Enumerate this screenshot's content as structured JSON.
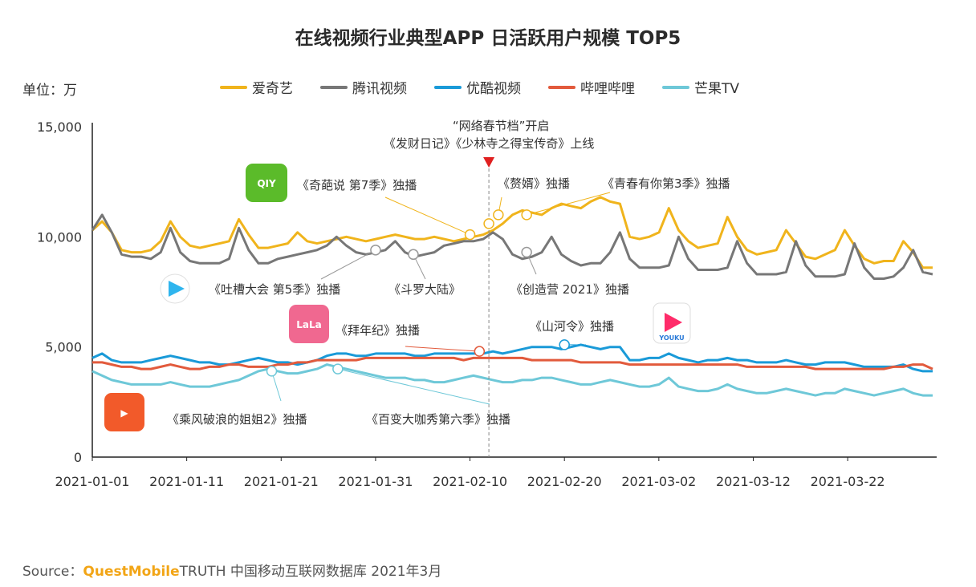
{
  "chart_data": {
    "type": "line",
    "title": "在线视频行业典型APP 日活跃用户规模 TOP5",
    "unit_label": "单位：万",
    "x_ticks": [
      "2021-01-01",
      "2021-01-11",
      "2021-01-21",
      "2021-01-31",
      "2021-02-10",
      "2021-02-20",
      "2021-03-02",
      "2021-03-12",
      "2021-03-22"
    ],
    "y_ticks": [
      "15,000",
      "10,000",
      "5,000",
      "0"
    ],
    "ylim": [
      0,
      15000
    ],
    "x_range": [
      "2021-01-01",
      "2021-03-31"
    ],
    "grid": false,
    "legend_position": "top",
    "series": [
      {
        "name": "爱奇艺",
        "color": "#f0b41c",
        "values": [
          10300,
          10700,
          10200,
          9400,
          9300,
          9300,
          9400,
          9800,
          10700,
          10000,
          9600,
          9500,
          9600,
          9700,
          9800,
          10800,
          10100,
          9500,
          9500,
          9600,
          9700,
          10200,
          9800,
          9700,
          9800,
          9900,
          10000,
          9900,
          9800,
          9900,
          10000,
          10100,
          10000,
          9900,
          9900,
          10000,
          9900,
          9800,
          9900,
          10000,
          10100,
          10300,
          10600,
          11000,
          11200,
          11100,
          11000,
          11300,
          11500,
          11400,
          11300,
          11600,
          11800,
          11600,
          11500,
          10000,
          9900,
          10000,
          10200,
          11300,
          10300,
          9800,
          9500,
          9600,
          9700,
          10900,
          10000,
          9400,
          9200,
          9300,
          9400,
          10300,
          9700,
          9100,
          9000,
          9200,
          9400,
          10300,
          9600,
          9000,
          8800,
          8900,
          8900,
          9800,
          9300,
          8600,
          8600
        ]
      },
      {
        "name": "腾讯视频",
        "color": "#777777",
        "values": [
          10300,
          11000,
          10200,
          9200,
          9100,
          9100,
          9000,
          9300,
          10400,
          9300,
          8900,
          8800,
          8800,
          8800,
          9000,
          10400,
          9400,
          8800,
          8800,
          9000,
          9100,
          9200,
          9300,
          9400,
          9600,
          10000,
          9600,
          9300,
          9200,
          9300,
          9400,
          9800,
          9300,
          9100,
          9200,
          9300,
          9600,
          9700,
          9800,
          9800,
          9900,
          10200,
          9900,
          9200,
          9000,
          9100,
          9300,
          10000,
          9200,
          8900,
          8700,
          8800,
          8800,
          9300,
          10200,
          9000,
          8600,
          8600,
          8600,
          8700,
          10000,
          9000,
          8500,
          8500,
          8500,
          8600,
          9800,
          8800,
          8300,
          8300,
          8300,
          8400,
          9800,
          8700,
          8200,
          8200,
          8200,
          8300,
          9700,
          8600,
          8100,
          8100,
          8200,
          8600,
          9400,
          8400,
          8300
        ]
      },
      {
        "name": "优酷视频",
        "color": "#1a9ad8",
        "values": [
          4500,
          4700,
          4400,
          4300,
          4300,
          4300,
          4400,
          4500,
          4600,
          4500,
          4400,
          4300,
          4300,
          4200,
          4200,
          4300,
          4400,
          4500,
          4400,
          4300,
          4300,
          4200,
          4300,
          4400,
          4600,
          4700,
          4700,
          4600,
          4600,
          4700,
          4700,
          4700,
          4700,
          4600,
          4600,
          4700,
          4700,
          4700,
          4700,
          4700,
          4700,
          4800,
          4700,
          4800,
          4900,
          5000,
          5000,
          5000,
          4900,
          5000,
          5100,
          5000,
          4900,
          5000,
          5000,
          4400,
          4400,
          4500,
          4500,
          4700,
          4500,
          4400,
          4300,
          4400,
          4400,
          4500,
          4400,
          4400,
          4300,
          4300,
          4300,
          4400,
          4300,
          4200,
          4200,
          4300,
          4300,
          4300,
          4200,
          4100,
          4100,
          4100,
          4100,
          4200,
          4000,
          3900,
          3900
        ]
      },
      {
        "name": "哔哩哔哩",
        "color": "#e25a3c",
        "values": [
          4300,
          4300,
          4200,
          4100,
          4100,
          4000,
          4000,
          4100,
          4200,
          4100,
          4000,
          4000,
          4100,
          4100,
          4200,
          4200,
          4100,
          4100,
          4100,
          4200,
          4200,
          4300,
          4300,
          4400,
          4400,
          4400,
          4400,
          4400,
          4500,
          4500,
          4500,
          4500,
          4500,
          4500,
          4500,
          4500,
          4500,
          4500,
          4400,
          4500,
          4500,
          4500,
          4500,
          4500,
          4500,
          4400,
          4400,
          4400,
          4400,
          4400,
          4300,
          4300,
          4300,
          4300,
          4300,
          4200,
          4200,
          4200,
          4200,
          4200,
          4200,
          4200,
          4200,
          4200,
          4200,
          4200,
          4200,
          4100,
          4100,
          4100,
          4100,
          4100,
          4100,
          4100,
          4000,
          4000,
          4000,
          4000,
          4000,
          4000,
          4000,
          4000,
          4100,
          4100,
          4200,
          4200,
          4000
        ]
      },
      {
        "name": "芒果TV",
        "color": "#6ec8d8",
        "values": [
          3900,
          3700,
          3500,
          3400,
          3300,
          3300,
          3300,
          3300,
          3400,
          3300,
          3200,
          3200,
          3200,
          3300,
          3400,
          3500,
          3700,
          3900,
          4000,
          3900,
          3800,
          3800,
          3900,
          4000,
          4200,
          4100,
          4000,
          3900,
          3800,
          3700,
          3600,
          3600,
          3600,
          3500,
          3500,
          3400,
          3400,
          3500,
          3600,
          3700,
          3600,
          3500,
          3400,
          3400,
          3500,
          3500,
          3600,
          3600,
          3500,
          3400,
          3300,
          3300,
          3400,
          3500,
          3400,
          3300,
          3200,
          3200,
          3300,
          3600,
          3200,
          3100,
          3000,
          3000,
          3100,
          3300,
          3100,
          3000,
          2900,
          2900,
          3000,
          3100,
          3000,
          2900,
          2800,
          2900,
          2900,
          3100,
          3000,
          2900,
          2800,
          2900,
          3000,
          3100,
          2900,
          2800,
          2800
        ]
      }
    ],
    "annotations": [
      {
        "id": "spring",
        "label": "“网络春节档”开启"
      },
      {
        "id": "facai",
        "label": "《发财日记》《少林寺之得宝传奇》上线"
      },
      {
        "id": "qipa",
        "label": "《奇葩说 第7季》独播"
      },
      {
        "id": "zhuixu",
        "label": "《赘婿》独播"
      },
      {
        "id": "qingchun",
        "label": "《青春有你第3季》独播"
      },
      {
        "id": "tucao",
        "label": "《吐槽大会 第5季》独播"
      },
      {
        "id": "douluo",
        "label": "《斗罗大陆》"
      },
      {
        "id": "chuangzao",
        "label": "《创造营 2021》独播"
      },
      {
        "id": "bainian",
        "label": "《拜年纪》独播"
      },
      {
        "id": "shanhe",
        "label": "《山河令》独播"
      },
      {
        "id": "chengfeng",
        "label": "《乘风破浪的姐姐2》独播"
      },
      {
        "id": "baibian",
        "label": "《百变大咖秀第六季》独播"
      }
    ]
  },
  "source": {
    "prefix": "Source：",
    "brand": "QuestMobile",
    "rest": "TRUTH 中国移动互联网数据库 2021年3月"
  },
  "logos": {
    "iqiyi": "QIY",
    "bilibili": "LaLa",
    "youku": "YOUKU"
  }
}
